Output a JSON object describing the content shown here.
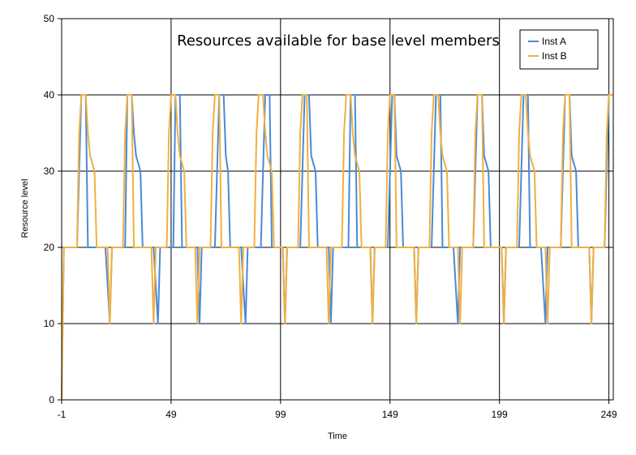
{
  "chart_data": {
    "type": "line",
    "title": "Resources available for base level members",
    "xlabel": "Time",
    "ylabel": "Resource level",
    "xlim": [
      -1,
      251
    ],
    "ylim": [
      0,
      50
    ],
    "x_ticks": [
      -1,
      49,
      99,
      149,
      199,
      249
    ],
    "x_tick_labels": [
      "-1",
      "49",
      "99",
      "149",
      "199",
      "249"
    ],
    "y_ticks": [
      0,
      10,
      20,
      30,
      40,
      50
    ],
    "y_tick_labels": [
      "0",
      "10",
      "20",
      "30",
      "40",
      "50"
    ],
    "grid": true,
    "legend_position": "top-right",
    "period": 50,
    "series": [
      {
        "name": "Inst A",
        "color": "#4a8ad8",
        "points": [
          [
            -1,
            0
          ],
          [
            0,
            20
          ],
          [
            6,
            20
          ],
          [
            8,
            40
          ],
          [
            10,
            40
          ],
          [
            11,
            20
          ],
          [
            16,
            20
          ],
          [
            19,
            20
          ],
          [
            21,
            10
          ],
          [
            22,
            20
          ],
          [
            28,
            20
          ],
          [
            29,
            40
          ],
          [
            31,
            40
          ],
          [
            32,
            35
          ],
          [
            33,
            32
          ],
          [
            35,
            30
          ],
          [
            36,
            20
          ],
          [
            41,
            20
          ],
          [
            43,
            10
          ],
          [
            44,
            20
          ],
          [
            50,
            20
          ],
          [
            51,
            40
          ],
          [
            53,
            40
          ],
          [
            54,
            20
          ],
          [
            59,
            20
          ],
          [
            61,
            20
          ],
          [
            62,
            10
          ],
          [
            63,
            20
          ],
          [
            69,
            20
          ],
          [
            71,
            40
          ],
          [
            73,
            40
          ],
          [
            74,
            32
          ],
          [
            75,
            30
          ],
          [
            76,
            20
          ],
          [
            81,
            20
          ],
          [
            83,
            10
          ],
          [
            84,
            20
          ],
          [
            90,
            20
          ],
          [
            92,
            40
          ],
          [
            94,
            40
          ],
          [
            95,
            20
          ],
          [
            100,
            20
          ],
          [
            101,
            10
          ],
          [
            102,
            20
          ],
          [
            108,
            20
          ],
          [
            110,
            40
          ],
          [
            112,
            40
          ],
          [
            113,
            32
          ],
          [
            115,
            30
          ],
          [
            116,
            20
          ],
          [
            121,
            20
          ],
          [
            122,
            10
          ],
          [
            123,
            20
          ],
          [
            130,
            20
          ],
          [
            131,
            40
          ],
          [
            133,
            40
          ],
          [
            134,
            20
          ],
          [
            140,
            20
          ],
          [
            141,
            10
          ],
          [
            142,
            20
          ],
          [
            148,
            20
          ],
          [
            150,
            40
          ],
          [
            151,
            40
          ],
          [
            152,
            32
          ],
          [
            154,
            30
          ],
          [
            155,
            20
          ],
          [
            160,
            20
          ],
          [
            161,
            10
          ],
          [
            162,
            20
          ],
          [
            168,
            20
          ],
          [
            170,
            40
          ],
          [
            172,
            40
          ],
          [
            173,
            20
          ],
          [
            178,
            20
          ],
          [
            180,
            10
          ],
          [
            181,
            20
          ],
          [
            187,
            20
          ],
          [
            189,
            40
          ],
          [
            191,
            40
          ],
          [
            192,
            32
          ],
          [
            194,
            30
          ],
          [
            195,
            20
          ],
          [
            200,
            20
          ],
          [
            201,
            10
          ],
          [
            202,
            20
          ],
          [
            208,
            20
          ],
          [
            210,
            40
          ],
          [
            212,
            40
          ],
          [
            213,
            20
          ],
          [
            218,
            20
          ],
          [
            220,
            10
          ],
          [
            221,
            20
          ],
          [
            227,
            20
          ],
          [
            229,
            40
          ],
          [
            231,
            40
          ],
          [
            232,
            32
          ],
          [
            234,
            30
          ],
          [
            235,
            20
          ],
          [
            240,
            20
          ],
          [
            241,
            10
          ],
          [
            242,
            20
          ],
          [
            247,
            20
          ],
          [
            249,
            40
          ],
          [
            251,
            40
          ]
        ]
      },
      {
        "name": "Inst B",
        "color": "#f0b040",
        "points": [
          [
            -1,
            0
          ],
          [
            0,
            20
          ],
          [
            6,
            20
          ],
          [
            7,
            35
          ],
          [
            8,
            40
          ],
          [
            10,
            40
          ],
          [
            11,
            35
          ],
          [
            12,
            32
          ],
          [
            14,
            30
          ],
          [
            15,
            20
          ],
          [
            20,
            20
          ],
          [
            21,
            10
          ],
          [
            22,
            20
          ],
          [
            27,
            20
          ],
          [
            28,
            35
          ],
          [
            29,
            40
          ],
          [
            31,
            40
          ],
          [
            32,
            20
          ],
          [
            40,
            20
          ],
          [
            41,
            10
          ],
          [
            42,
            20
          ],
          [
            47,
            20
          ],
          [
            48,
            35
          ],
          [
            49,
            40
          ],
          [
            51,
            40
          ],
          [
            52,
            35
          ],
          [
            53,
            32
          ],
          [
            55,
            30
          ],
          [
            56,
            20
          ],
          [
            60,
            20
          ],
          [
            61,
            10
          ],
          [
            62,
            20
          ],
          [
            67,
            20
          ],
          [
            68,
            35
          ],
          [
            69,
            40
          ],
          [
            71,
            40
          ],
          [
            72,
            20
          ],
          [
            80,
            20
          ],
          [
            81,
            10
          ],
          [
            82,
            20
          ],
          [
            87,
            20
          ],
          [
            88,
            35
          ],
          [
            89,
            40
          ],
          [
            91,
            40
          ],
          [
            92,
            35
          ],
          [
            93,
            32
          ],
          [
            95,
            30
          ],
          [
            96,
            20
          ],
          [
            100,
            20
          ],
          [
            101,
            10
          ],
          [
            102,
            20
          ],
          [
            107,
            20
          ],
          [
            108,
            35
          ],
          [
            109,
            40
          ],
          [
            111,
            40
          ],
          [
            112,
            20
          ],
          [
            120,
            20
          ],
          [
            121,
            10
          ],
          [
            122,
            20
          ],
          [
            127,
            20
          ],
          [
            128,
            35
          ],
          [
            129,
            40
          ],
          [
            131,
            40
          ],
          [
            132,
            35
          ],
          [
            133,
            32
          ],
          [
            135,
            30
          ],
          [
            136,
            20
          ],
          [
            140,
            20
          ],
          [
            141,
            10
          ],
          [
            142,
            20
          ],
          [
            147,
            20
          ],
          [
            148,
            35
          ],
          [
            149,
            40
          ],
          [
            151,
            40
          ],
          [
            152,
            20
          ],
          [
            160,
            20
          ],
          [
            161,
            10
          ],
          [
            162,
            20
          ],
          [
            167,
            20
          ],
          [
            168,
            35
          ],
          [
            169,
            40
          ],
          [
            171,
            40
          ],
          [
            172,
            35
          ],
          [
            173,
            32
          ],
          [
            175,
            30
          ],
          [
            176,
            20
          ],
          [
            180,
            20
          ],
          [
            181,
            10
          ],
          [
            182,
            20
          ],
          [
            187,
            20
          ],
          [
            188,
            35
          ],
          [
            189,
            40
          ],
          [
            191,
            40
          ],
          [
            192,
            20
          ],
          [
            200,
            20
          ],
          [
            201,
            10
          ],
          [
            202,
            20
          ],
          [
            207,
            20
          ],
          [
            208,
            35
          ],
          [
            209,
            40
          ],
          [
            211,
            40
          ],
          [
            212,
            35
          ],
          [
            213,
            32
          ],
          [
            215,
            30
          ],
          [
            216,
            20
          ],
          [
            220,
            20
          ],
          [
            221,
            10
          ],
          [
            222,
            20
          ],
          [
            227,
            20
          ],
          [
            228,
            35
          ],
          [
            229,
            40
          ],
          [
            231,
            40
          ],
          [
            232,
            20
          ],
          [
            240,
            20
          ],
          [
            241,
            10
          ],
          [
            242,
            20
          ],
          [
            247,
            20
          ],
          [
            248,
            35
          ],
          [
            249,
            40
          ],
          [
            251,
            40
          ]
        ]
      }
    ]
  }
}
